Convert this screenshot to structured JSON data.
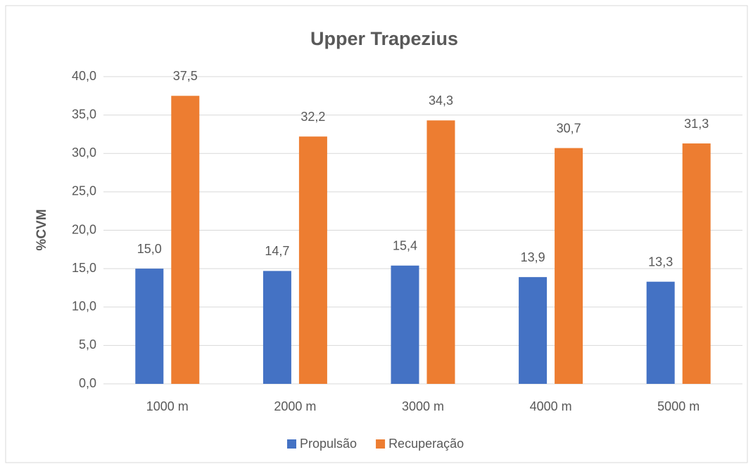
{
  "chart_data": {
    "type": "bar",
    "title": "Upper Trapezius",
    "y_label": "%CVM",
    "categories": [
      "1000 m",
      "2000 m",
      "3000 m",
      "4000 m",
      "5000 m"
    ],
    "series": [
      {
        "name": "Propulsão",
        "color": "#4472c4",
        "values": [
          15.0,
          14.7,
          15.4,
          13.9,
          13.3
        ],
        "value_labels": [
          "15,0",
          "14,7",
          "15,4",
          "13,9",
          "13,3"
        ]
      },
      {
        "name": "Recuperação",
        "color": "#ed7d31",
        "values": [
          37.5,
          32.2,
          34.3,
          30.7,
          31.3
        ],
        "value_labels": [
          "37,5",
          "32,2",
          "34,3",
          "30,7",
          "31,3"
        ]
      }
    ],
    "ylim": [
      0,
      40
    ],
    "yticks": [
      {
        "value": 0,
        "label": "0,0"
      },
      {
        "value": 5,
        "label": "5,0"
      },
      {
        "value": 10,
        "label": "10,0"
      },
      {
        "value": 15,
        "label": "15,0"
      },
      {
        "value": 20,
        "label": "20,0"
      },
      {
        "value": 25,
        "label": "25,0"
      },
      {
        "value": 30,
        "label": "30,0"
      },
      {
        "value": 35,
        "label": "35,0"
      },
      {
        "value": 40,
        "label": "40,0"
      }
    ],
    "grid": true,
    "legend": "bottom"
  }
}
